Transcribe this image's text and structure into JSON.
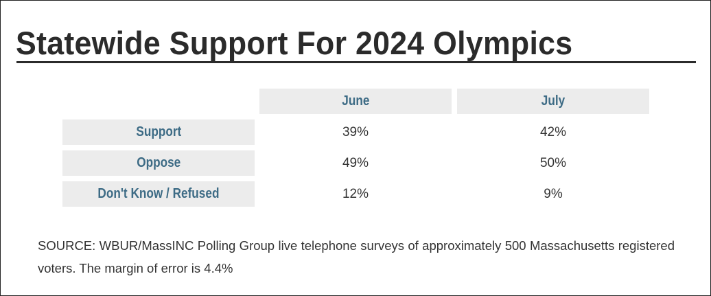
{
  "title": "Statewide Support For 2024 Olympics",
  "colors": {
    "header_text": "#3d6b85",
    "cell_background": "#ececec",
    "body_text": "#333333",
    "title_text": "#2b2b2b"
  },
  "chart_data": {
    "type": "table",
    "title": "Statewide Support For 2024 Olympics",
    "columns": [
      "June",
      "July"
    ],
    "rows": [
      {
        "label": "Support",
        "values": [
          "39%",
          "42%"
        ]
      },
      {
        "label": "Oppose",
        "values": [
          "49%",
          "50%"
        ]
      },
      {
        "label": "Don't Know / Refused",
        "values": [
          "12%",
          "9%"
        ]
      }
    ]
  },
  "source_note": "SOURCE: WBUR/MassINC Polling Group live telephone surveys of approximately 500 Massachusetts registered voters. The margin of error is 4.4%"
}
